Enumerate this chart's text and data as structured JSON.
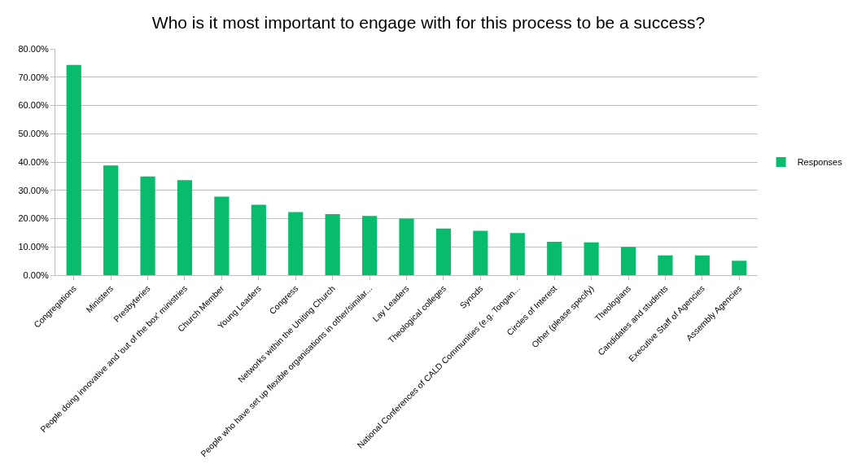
{
  "chart_data": {
    "type": "bar",
    "title": "Who is it most important to engage with for this process to be a success?",
    "categories": [
      "Congregations",
      "Ministers",
      "Presbyteries",
      "People doing innovative and 'out of the box' ministries",
      "Church Member",
      "Young Leaders",
      "Congress",
      "Networks within the Uniting Church",
      "People who have set up flexible organisations in other/similar...",
      "Lay Leaders",
      "Theological colleges",
      "Synods",
      "National Conferences of CALD Communities (e.g. Tongan...",
      "Circles of Interest",
      "Other (please specify)",
      "Theologians",
      "Candidates and students",
      "Executive Staff of Agencies",
      "Assembly Agencies"
    ],
    "series": [
      {
        "name": "Responses",
        "color": "#09bb6c",
        "values": [
          74.3,
          38.8,
          34.9,
          33.6,
          27.8,
          24.9,
          22.3,
          21.6,
          20.9,
          20.0,
          16.5,
          15.7,
          14.9,
          11.8,
          11.6,
          10.0,
          7.0,
          7.0,
          5.1
        ]
      }
    ],
    "ylim": [
      0,
      80
    ],
    "yticks": [
      {
        "value": 0,
        "label": "0.00%"
      },
      {
        "value": 10,
        "label": "10.00%"
      },
      {
        "value": 20,
        "label": "20.00%"
      },
      {
        "value": 30,
        "label": "30.00%"
      },
      {
        "value": 40,
        "label": "40.00%"
      },
      {
        "value": 50,
        "label": "50.00%"
      },
      {
        "value": 60,
        "label": "60.00%"
      },
      {
        "value": 70,
        "label": "70.00%"
      },
      {
        "value": 80,
        "label": "80.00%"
      }
    ],
    "grid": "y",
    "legend": "right"
  }
}
